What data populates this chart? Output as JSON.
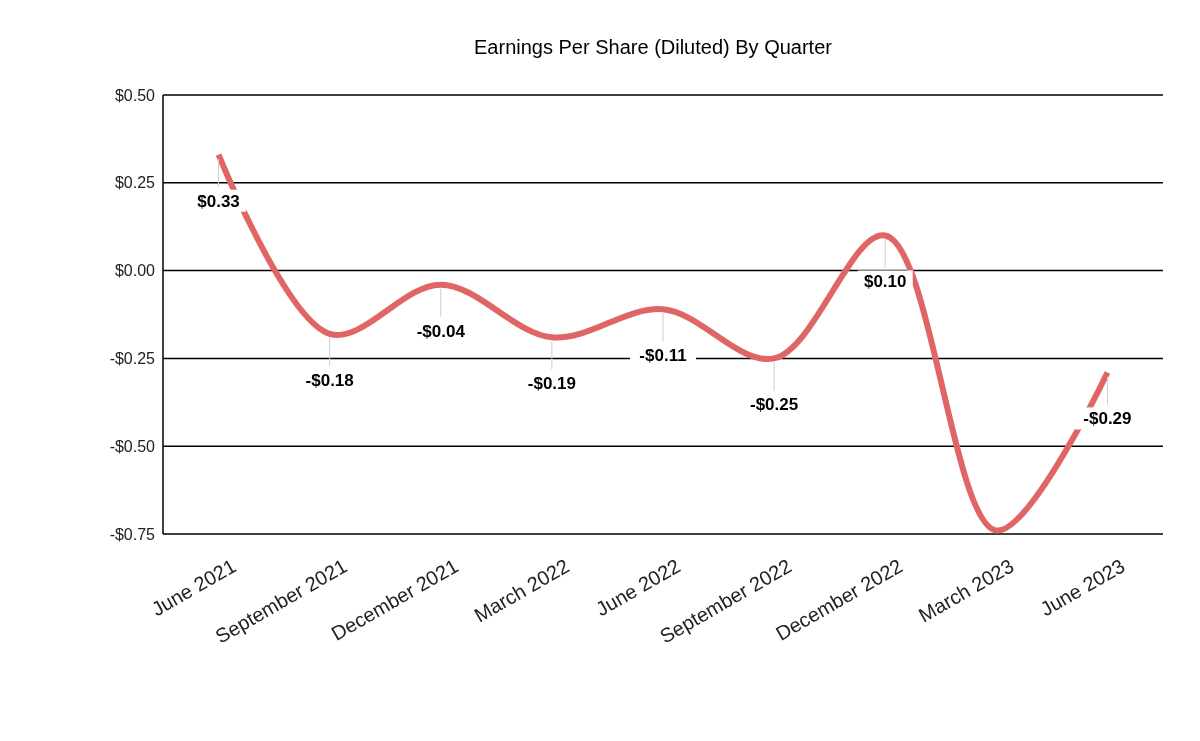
{
  "chart_data": {
    "type": "line",
    "title": "Earnings Per Share (Diluted) By Quarter",
    "categories": [
      "June 2021",
      "September 2021",
      "December 2021",
      "March 2022",
      "June 2022",
      "September 2022",
      "December 2022",
      "March 2023",
      "June 2023"
    ],
    "series": [
      {
        "color": "#e06666",
        "values": [
          0.33,
          -0.18,
          -0.04,
          -0.19,
          -0.11,
          -0.25,
          0.1,
          -0.74,
          -0.29
        ],
        "value_labels": [
          "$0.33",
          "-$0.18",
          "-$0.04",
          "-$0.19",
          "-$0.11",
          "-$0.25",
          "$0.10",
          null,
          "-$0.29"
        ]
      }
    ],
    "ylim": [
      -0.75,
      0.5
    ],
    "yticks": [
      {
        "value": -0.75,
        "label": "-$0.75"
      },
      {
        "value": -0.5,
        "label": "-$0.50"
      },
      {
        "value": -0.25,
        "label": "-$0.25"
      },
      {
        "value": 0,
        "label": "$0.00"
      },
      {
        "value": 0.25,
        "label": "$0.25"
      },
      {
        "value": 0.5,
        "label": "$0.50"
      }
    ],
    "grid": "y",
    "marker": "none",
    "line_style": "solid"
  }
}
